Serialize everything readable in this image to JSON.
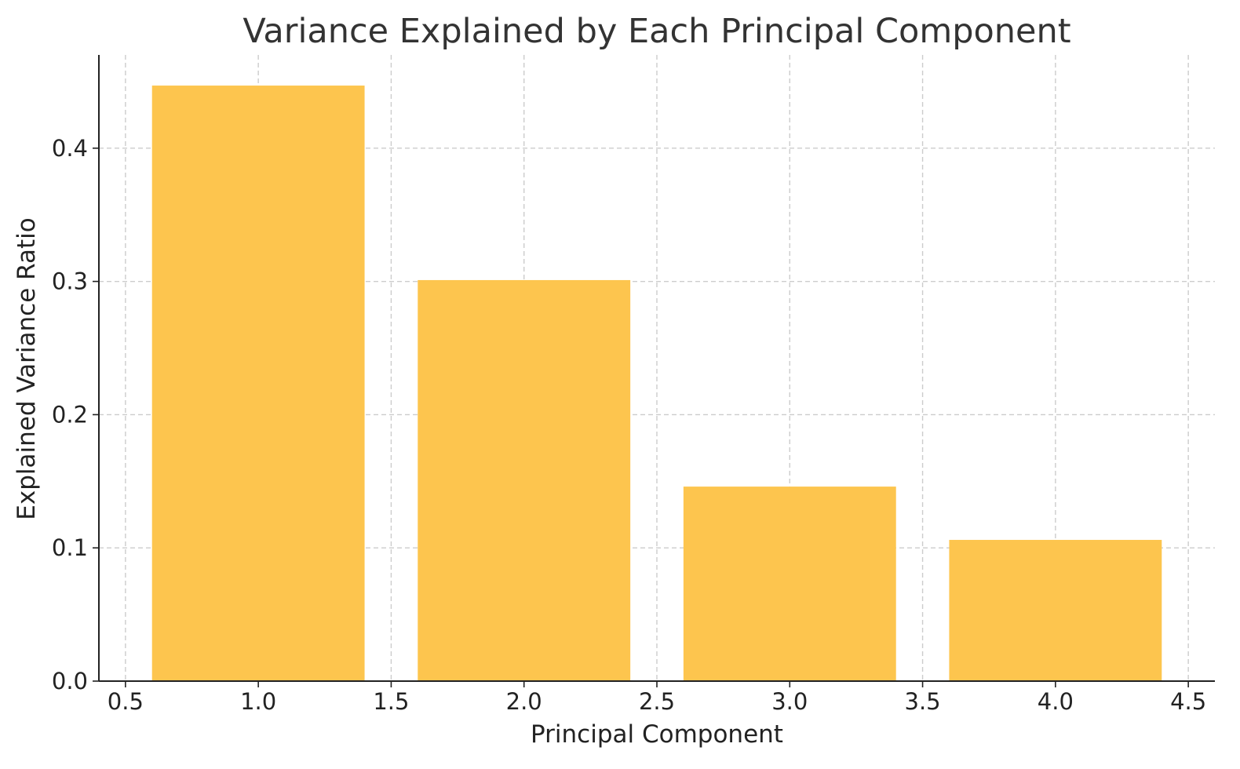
{
  "chart_data": {
    "type": "bar",
    "title": "Variance Explained by Each Principal Component",
    "xlabel": "Principal Component",
    "ylabel": "Explained Variance Ratio",
    "x": [
      1,
      2,
      3,
      4
    ],
    "values": [
      0.447,
      0.301,
      0.146,
      0.106
    ],
    "bar_width": 0.8,
    "xlim": [
      0.4,
      4.6
    ],
    "ylim": [
      0.0,
      0.47
    ],
    "xticks": [
      "0.5",
      "1.0",
      "1.5",
      "2.0",
      "2.5",
      "3.0",
      "3.5",
      "4.0",
      "4.5"
    ],
    "yticks": [
      "0.0",
      "0.1",
      "0.2",
      "0.3",
      "0.4"
    ],
    "grid": true,
    "colors": {
      "bar": "#FDC54E",
      "grid": "#cccccc",
      "axis": "#222222",
      "title": "#333333"
    }
  }
}
